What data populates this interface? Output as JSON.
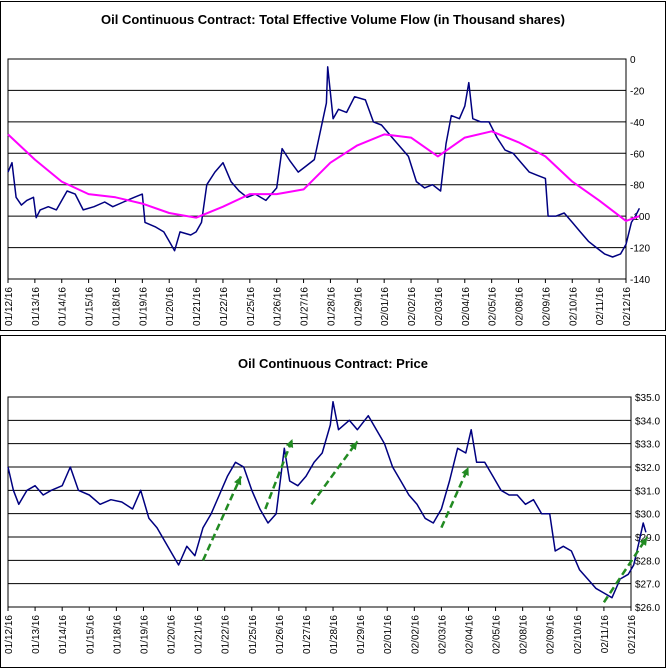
{
  "colors": {
    "series": "#000080",
    "moving_average": "#ff00ff",
    "trend_arrows": "#228b22",
    "grid": "#000000"
  },
  "chart_data": [
    {
      "type": "line",
      "title": "Oil Continuous Contract: Total Effective Volume Flow (in Thousand shares)",
      "ylim": [
        -140,
        0
      ],
      "yticks": [
        0,
        -20,
        -40,
        -60,
        -80,
        -100,
        -120,
        -140
      ],
      "x_tick_labels": [
        "01/12/16",
        "01/13/16",
        "01/14/16",
        "01/15/16",
        "01/18/16",
        "01/19/16",
        "01/20/16",
        "01/21/16",
        "01/22/16",
        "01/25/16",
        "01/26/16",
        "01/27/16",
        "01/28/16",
        "01/29/16",
        "02/01/16",
        "02/02/16",
        "02/03/16",
        "02/04/16",
        "02/05/16",
        "02/08/16",
        "02/09/16",
        "02/10/16",
        "02/11/16",
        "02/12/16"
      ],
      "axis_position": "right",
      "grid": true,
      "series": [
        {
          "values": [
            [
              0,
              -72
            ],
            [
              0.15,
              -66
            ],
            [
              0.3,
              -88
            ],
            [
              0.5,
              -93
            ],
            [
              0.7,
              -90
            ],
            [
              0.95,
              -88
            ],
            [
              1.05,
              -101
            ],
            [
              1.2,
              -96
            ],
            [
              1.5,
              -94
            ],
            [
              1.8,
              -96
            ],
            [
              2.2,
              -84
            ],
            [
              2.5,
              -86
            ],
            [
              2.8,
              -96
            ],
            [
              3.2,
              -94
            ],
            [
              3.6,
              -91
            ],
            [
              3.9,
              -94
            ],
            [
              4.3,
              -91
            ],
            [
              4.7,
              -88
            ],
            [
              5.0,
              -86
            ],
            [
              5.1,
              -104
            ],
            [
              5.5,
              -107
            ],
            [
              5.8,
              -110
            ],
            [
              6.0,
              -116
            ],
            [
              6.2,
              -122
            ],
            [
              6.4,
              -110
            ],
            [
              6.8,
              -112
            ],
            [
              7.0,
              -110
            ],
            [
              7.2,
              -104
            ],
            [
              7.4,
              -80
            ],
            [
              7.7,
              -72
            ],
            [
              8.0,
              -66
            ],
            [
              8.3,
              -78
            ],
            [
              8.6,
              -84
            ],
            [
              8.9,
              -88
            ],
            [
              9.2,
              -86
            ],
            [
              9.6,
              -90
            ],
            [
              10.0,
              -82
            ],
            [
              10.2,
              -57
            ],
            [
              10.5,
              -65
            ],
            [
              10.8,
              -72
            ],
            [
              11.1,
              -68
            ],
            [
              11.4,
              -64
            ],
            [
              11.6,
              -48
            ],
            [
              11.85,
              -28
            ],
            [
              11.9,
              -5
            ],
            [
              12.1,
              -38
            ],
            [
              12.3,
              -32
            ],
            [
              12.6,
              -34
            ],
            [
              12.9,
              -24
            ],
            [
              13.3,
              -26
            ],
            [
              13.6,
              -40
            ],
            [
              13.9,
              -42
            ],
            [
              14.3,
              -50
            ],
            [
              14.6,
              -56
            ],
            [
              14.9,
              -62
            ],
            [
              15.2,
              -78
            ],
            [
              15.5,
              -82
            ],
            [
              15.8,
              -80
            ],
            [
              16.1,
              -84
            ],
            [
              16.3,
              -54
            ],
            [
              16.5,
              -36
            ],
            [
              16.8,
              -38
            ],
            [
              17.0,
              -30
            ],
            [
              17.15,
              -15
            ],
            [
              17.3,
              -38
            ],
            [
              17.6,
              -40
            ],
            [
              17.9,
              -40
            ],
            [
              18.2,
              -50
            ],
            [
              18.5,
              -58
            ],
            [
              18.8,
              -60
            ],
            [
              19.1,
              -66
            ],
            [
              19.4,
              -72
            ],
            [
              19.7,
              -74
            ],
            [
              20.0,
              -76
            ],
            [
              20.1,
              -100
            ],
            [
              20.4,
              -100
            ],
            [
              20.7,
              -98
            ],
            [
              21.0,
              -104
            ],
            [
              21.3,
              -110
            ],
            [
              21.6,
              -116
            ],
            [
              21.9,
              -120
            ],
            [
              22.2,
              -124
            ],
            [
              22.5,
              -126
            ],
            [
              22.8,
              -124
            ],
            [
              23.0,
              -118
            ],
            [
              23.2,
              -104
            ],
            [
              23.35,
              -100
            ],
            [
              23.5,
              -95
            ]
          ]
        },
        {
          "values": [
            [
              0,
              -48
            ],
            [
              1,
              -64
            ],
            [
              2,
              -78
            ],
            [
              3,
              -86
            ],
            [
              4,
              -88
            ],
            [
              5,
              -92
            ],
            [
              6,
              -98
            ],
            [
              7,
              -101
            ],
            [
              8,
              -94
            ],
            [
              9,
              -86
            ],
            [
              10,
              -86
            ],
            [
              11,
              -83
            ],
            [
              12,
              -66
            ],
            [
              13,
              -55
            ],
            [
              14,
              -48
            ],
            [
              15,
              -50
            ],
            [
              16,
              -62
            ],
            [
              17,
              -50
            ],
            [
              18,
              -46
            ],
            [
              19,
              -53
            ],
            [
              20,
              -62
            ],
            [
              21,
              -78
            ],
            [
              22,
              -90
            ],
            [
              23,
              -103
            ],
            [
              23.5,
              -100
            ]
          ]
        }
      ]
    },
    {
      "type": "line",
      "title": "Oil Continuous Contract: Price",
      "ylim": [
        26.0,
        35.0
      ],
      "yticks": [
        "$35.0",
        "$34.0",
        "$33.0",
        "$32.0",
        "$31.0",
        "$30.0",
        "$29.0",
        "$28.0",
        "$27.0",
        "$26.0"
      ],
      "x_tick_labels": [
        "01/12/16",
        "01/13/16",
        "01/14/16",
        "01/15/16",
        "01/18/16",
        "01/19/16",
        "01/20/16",
        "01/21/16",
        "01/22/16",
        "01/25/16",
        "01/26/16",
        "01/27/16",
        "01/28/16",
        "01/29/16",
        "02/01/16",
        "02/02/16",
        "02/03/16",
        "02/04/16",
        "02/05/16",
        "02/08/16",
        "02/09/16",
        "02/10/16",
        "02/11/16",
        "02/12/16"
      ],
      "axis_position": "right",
      "grid": true,
      "series": [
        {
          "values": [
            [
              0,
              32.0
            ],
            [
              0.2,
              31.0
            ],
            [
              0.4,
              30.4
            ],
            [
              0.7,
              31.0
            ],
            [
              1.0,
              31.2
            ],
            [
              1.3,
              30.8
            ],
            [
              1.6,
              31.0
            ],
            [
              2.0,
              31.2
            ],
            [
              2.3,
              32.0
            ],
            [
              2.6,
              31.0
            ],
            [
              3.0,
              30.8
            ],
            [
              3.4,
              30.4
            ],
            [
              3.8,
              30.6
            ],
            [
              4.2,
              30.5
            ],
            [
              4.6,
              30.2
            ],
            [
              4.9,
              31.0
            ],
            [
              5.2,
              29.8
            ],
            [
              5.5,
              29.4
            ],
            [
              5.8,
              28.8
            ],
            [
              6.1,
              28.2
            ],
            [
              6.3,
              27.8
            ],
            [
              6.6,
              28.6
            ],
            [
              6.9,
              28.2
            ],
            [
              7.2,
              29.4
            ],
            [
              7.5,
              30.0
            ],
            [
              7.8,
              30.8
            ],
            [
              8.1,
              31.6
            ],
            [
              8.4,
              32.2
            ],
            [
              8.7,
              32.0
            ],
            [
              9.0,
              31.0
            ],
            [
              9.3,
              30.2
            ],
            [
              9.6,
              29.6
            ],
            [
              9.9,
              30.0
            ],
            [
              10.2,
              32.8
            ],
            [
              10.4,
              31.4
            ],
            [
              10.7,
              31.2
            ],
            [
              11.0,
              31.6
            ],
            [
              11.3,
              32.2
            ],
            [
              11.6,
              32.6
            ],
            [
              11.9,
              33.8
            ],
            [
              12.0,
              34.8
            ],
            [
              12.2,
              33.6
            ],
            [
              12.6,
              34.0
            ],
            [
              12.9,
              33.6
            ],
            [
              13.3,
              34.2
            ],
            [
              13.6,
              33.6
            ],
            [
              13.9,
              33.0
            ],
            [
              14.2,
              32.0
            ],
            [
              14.5,
              31.4
            ],
            [
              14.8,
              30.8
            ],
            [
              15.1,
              30.4
            ],
            [
              15.4,
              29.8
            ],
            [
              15.7,
              29.6
            ],
            [
              16.0,
              30.2
            ],
            [
              16.3,
              31.4
            ],
            [
              16.6,
              32.8
            ],
            [
              16.9,
              32.6
            ],
            [
              17.1,
              33.6
            ],
            [
              17.3,
              32.2
            ],
            [
              17.6,
              32.2
            ],
            [
              17.9,
              31.6
            ],
            [
              18.2,
              31.0
            ],
            [
              18.5,
              30.8
            ],
            [
              18.8,
              30.8
            ],
            [
              19.1,
              30.4
            ],
            [
              19.4,
              30.6
            ],
            [
              19.7,
              30.0
            ],
            [
              20.0,
              30.0
            ],
            [
              20.2,
              28.4
            ],
            [
              20.5,
              28.6
            ],
            [
              20.8,
              28.4
            ],
            [
              21.1,
              27.6
            ],
            [
              21.4,
              27.2
            ],
            [
              21.7,
              26.8
            ],
            [
              22.0,
              26.6
            ],
            [
              22.3,
              26.4
            ],
            [
              22.6,
              27.2
            ],
            [
              22.9,
              27.4
            ],
            [
              23.1,
              27.8
            ],
            [
              23.3,
              28.8
            ],
            [
              23.45,
              29.6
            ],
            [
              23.55,
              29.2
            ]
          ]
        }
      ],
      "annotations": [
        {
          "type": "arrow",
          "from": [
            7.2,
            28.0
          ],
          "to": [
            8.6,
            31.6
          ]
        },
        {
          "type": "arrow",
          "from": [
            9.5,
            30.2
          ],
          "to": [
            10.5,
            33.2
          ]
        },
        {
          "type": "arrow",
          "from": [
            11.2,
            30.4
          ],
          "to": [
            12.9,
            33.1
          ]
        },
        {
          "type": "arrow",
          "from": [
            16.0,
            29.4
          ],
          "to": [
            17.0,
            32.0
          ]
        },
        {
          "type": "arrow",
          "from": [
            22.0,
            26.2
          ],
          "to": [
            23.6,
            29.0
          ]
        }
      ]
    }
  ]
}
